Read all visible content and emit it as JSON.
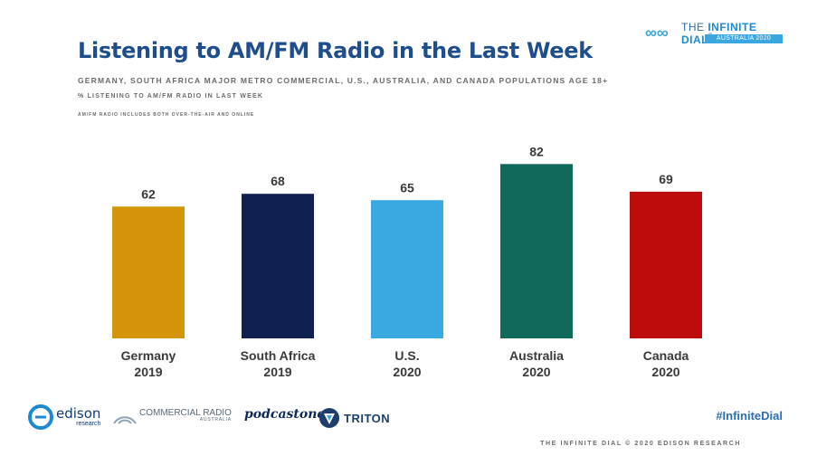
{
  "header": {
    "title": "Listening to AM/FM Radio in the Last Week",
    "subtitle": "GERMANY, SOUTH AFRICA MAJOR METRO COMMERCIAL, U.S., AUSTRALIA, AND CANADA POPULATIONS AGE 18+",
    "measure": "% LISTENING TO AM/FM RADIO IN LAST WEEK",
    "note": "AM/FM RADIO INCLUDES BOTH OVER-THE-AIR AND ONLINE"
  },
  "brand": {
    "name_prefix": "THE ",
    "name_bold": "INFINITE DIAL",
    "trademark": "®",
    "badge": "AUSTRALIA 2020",
    "icon": "infinity-icon"
  },
  "chart_data": {
    "type": "bar",
    "categories": [
      [
        "Germany",
        "2019"
      ],
      [
        "South Africa",
        "2019"
      ],
      [
        "U.S.",
        "2020"
      ],
      [
        "Australia",
        "2020"
      ],
      [
        "Canada",
        "2020"
      ]
    ],
    "values": [
      62,
      68,
      65,
      82,
      69
    ],
    "colors": [
      "#d4950a",
      "#102050",
      "#3ba9e1",
      "#0f6a5a",
      "#bd0c0c"
    ],
    "title": "",
    "xlabel": "",
    "ylabel": "",
    "ylim": [
      0,
      100
    ],
    "grid": false,
    "data_labels": true
  },
  "footer": {
    "logos": [
      {
        "icon": "edison-research-logo",
        "text": "edison",
        "sub": "research"
      },
      {
        "icon": "commercial-radio-australia-logo",
        "text": "COMMERCIAL RADIO",
        "sub": "AUSTRALIA"
      },
      {
        "icon": "podcastone-logo",
        "text": "podcastone"
      },
      {
        "icon": "triton-logo",
        "text": "TRITON"
      }
    ],
    "hashtag": "#InfiniteDial",
    "copyright": "THE INFINITE DIAL © 2020 EDISON RESEARCH"
  }
}
